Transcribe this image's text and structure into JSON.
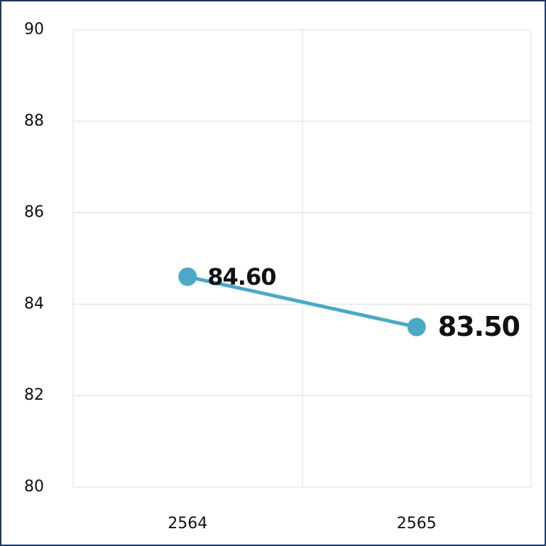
{
  "chart_data": {
    "type": "line",
    "categories": [
      "2564",
      "2565"
    ],
    "values": [
      84.6,
      83.5
    ],
    "value_labels": [
      "84.60",
      "83.50"
    ],
    "label_colors": [
      "#7a7a7a",
      "#0b6fbf"
    ],
    "color": "#4aa9c6",
    "ylim": [
      80,
      90
    ],
    "yticks": [
      80,
      82,
      84,
      86,
      88,
      90
    ],
    "grid": true
  }
}
